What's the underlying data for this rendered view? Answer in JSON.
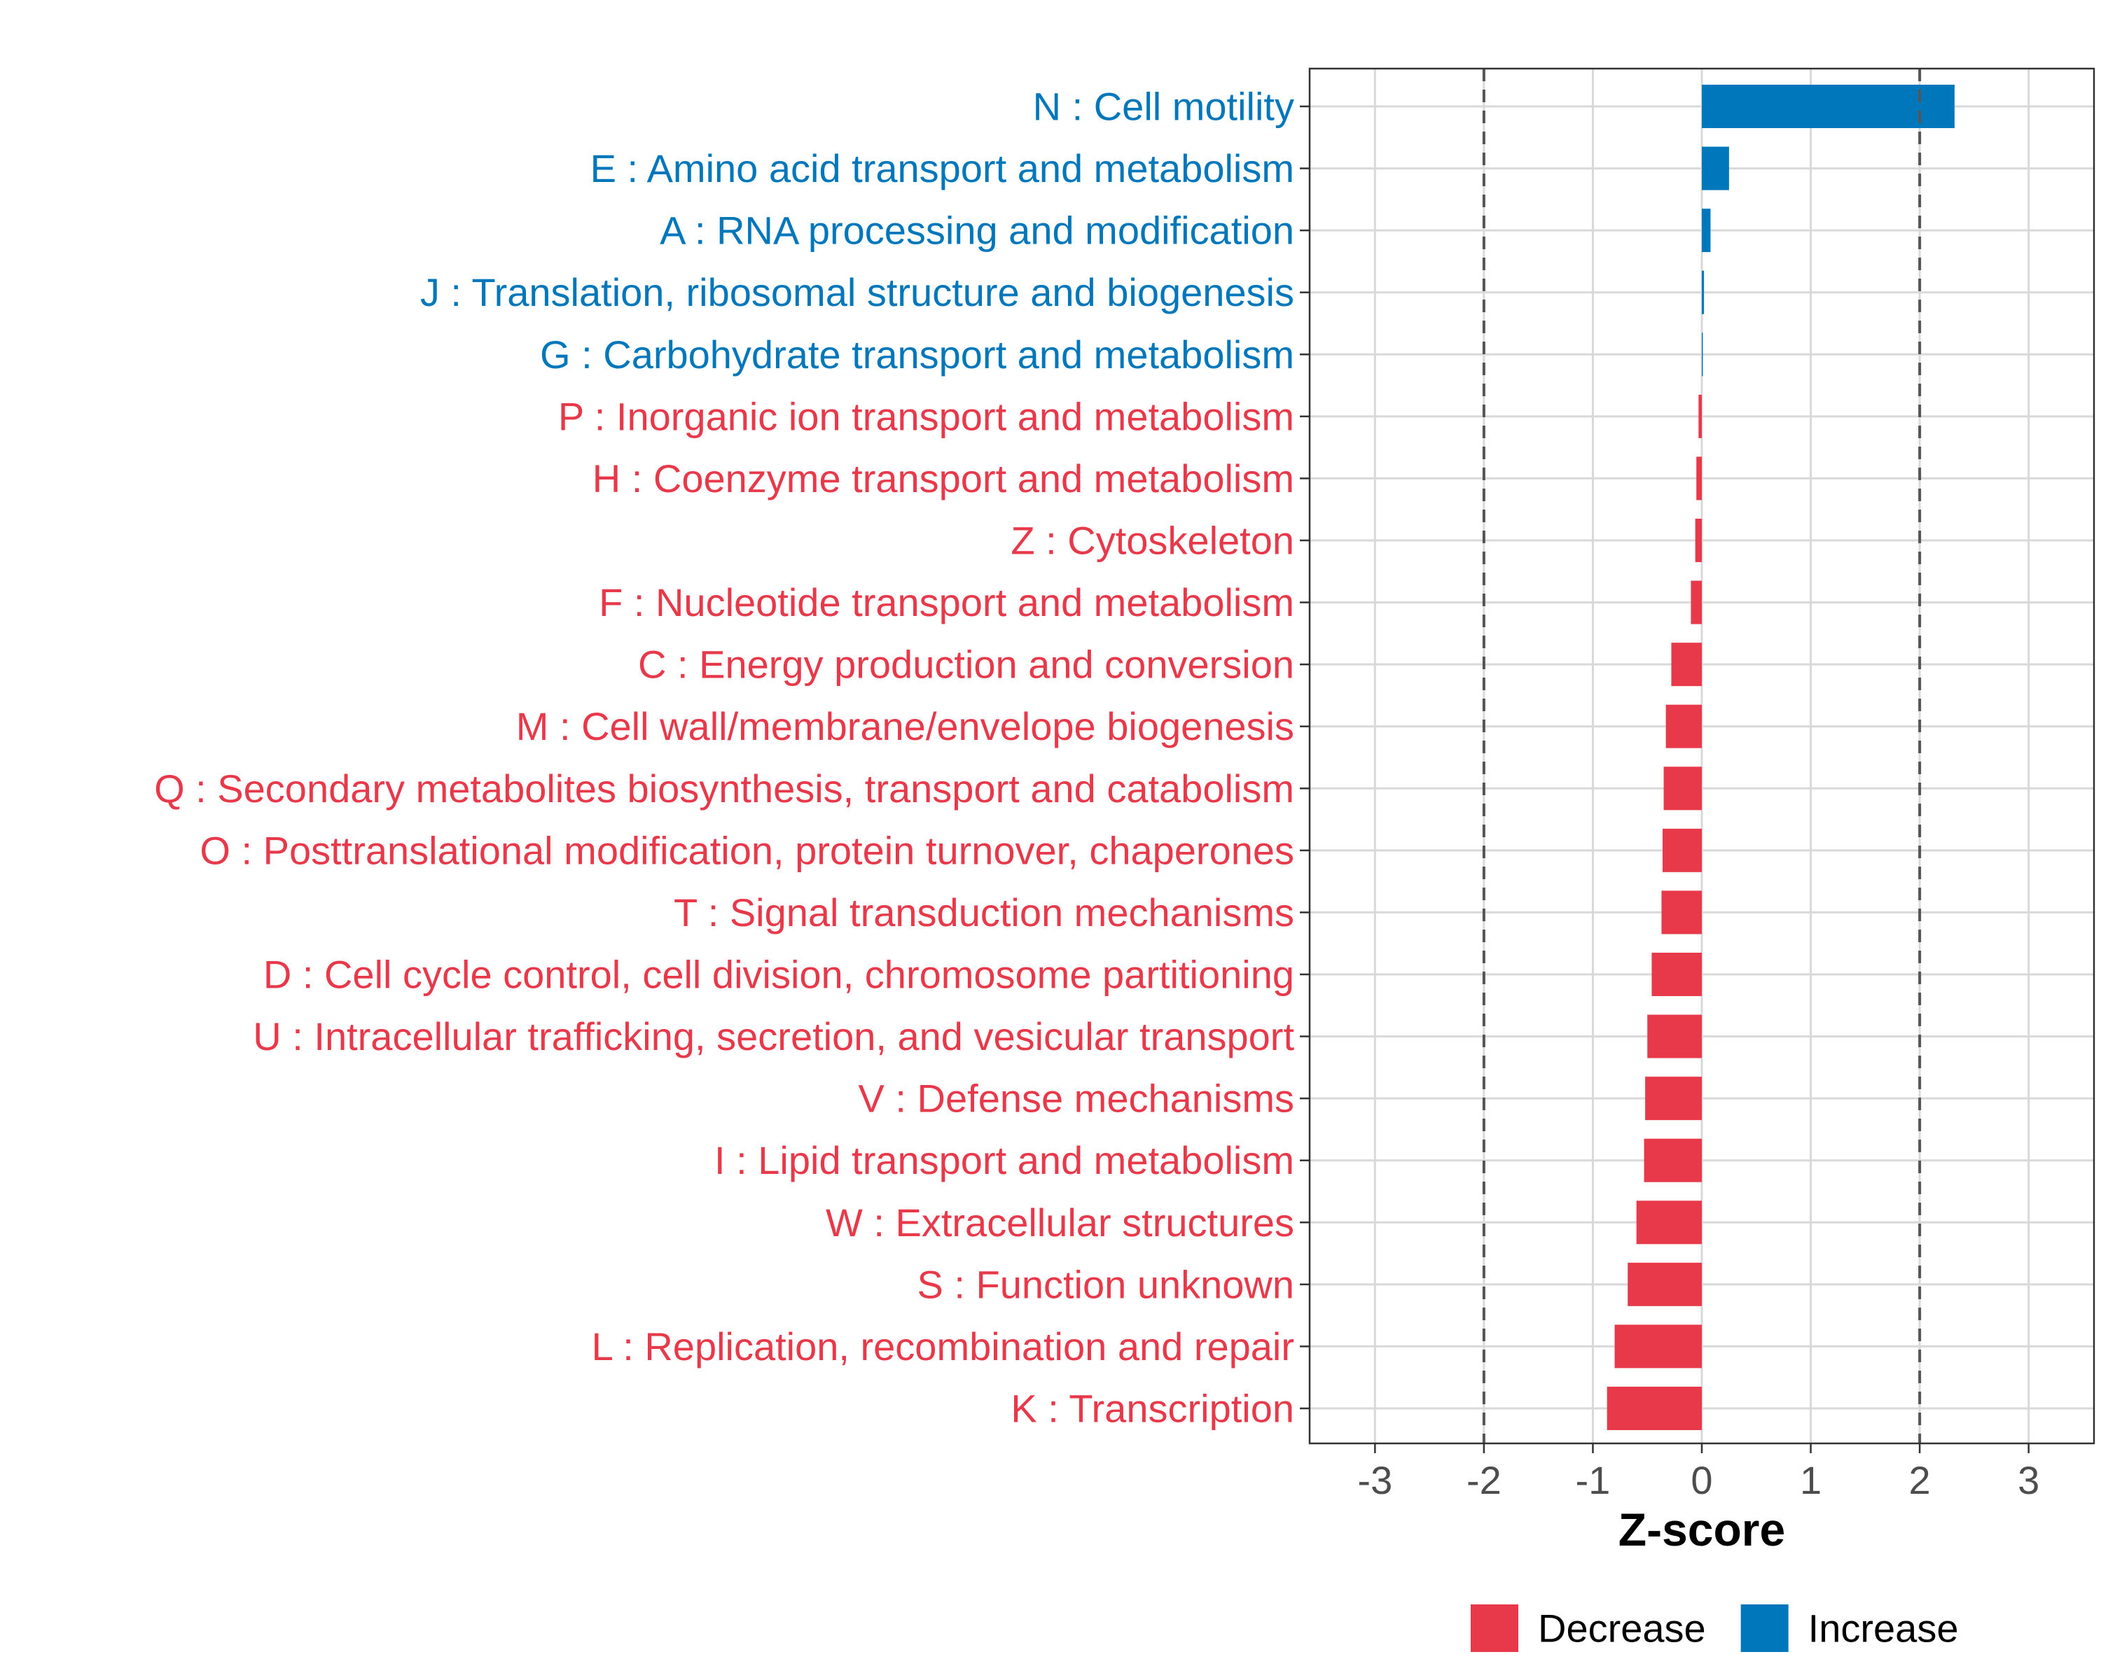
{
  "chart_data": {
    "type": "bar",
    "orientation": "horizontal",
    "xlabel": "Z-score",
    "ylabel": "",
    "xlim": [
      -3.6,
      3.6
    ],
    "x_ticks": [
      -3,
      -2,
      -1,
      0,
      1,
      2,
      3
    ],
    "threshold_lines": [
      -2,
      2
    ],
    "grid": true,
    "legend_position": "bottom",
    "colors": {
      "Increase": "#0077BB",
      "Decrease": "#E8394A",
      "gridline": "#D9D9D9",
      "dashline": "#555555",
      "tick_text": "#4D4D4D"
    },
    "legend": [
      {
        "label": "Decrease",
        "color": "#E8394A"
      },
      {
        "label": "Increase",
        "color": "#0077BB"
      }
    ],
    "categories": [
      "N : Cell motility",
      "E : Amino acid transport and metabolism",
      "A : RNA processing and modification",
      "J : Translation, ribosomal structure and biogenesis",
      "G : Carbohydrate transport and metabolism",
      "P : Inorganic ion transport and metabolism",
      "H : Coenzyme transport and metabolism",
      "Z : Cytoskeleton",
      "F : Nucleotide transport and metabolism",
      "C : Energy production and conversion",
      "M : Cell wall/membrane/envelope biogenesis",
      "Q : Secondary metabolites biosynthesis, transport and catabolism",
      "O : Posttranslational modification, protein turnover, chaperones",
      "T : Signal transduction mechanisms",
      "D : Cell cycle control, cell division, chromosome partitioning",
      "U : Intracellular trafficking, secretion, and vesicular transport",
      "V : Defense mechanisms",
      "I : Lipid transport and metabolism",
      "W : Extracellular structures",
      "S : Function unknown",
      "L : Replication, recombination and repair",
      "K : Transcription"
    ],
    "values": [
      2.32,
      0.25,
      0.08,
      0.02,
      0.005,
      -0.03,
      -0.05,
      -0.06,
      -0.1,
      -0.28,
      -0.33,
      -0.35,
      -0.36,
      -0.37,
      -0.46,
      -0.5,
      -0.52,
      -0.53,
      -0.6,
      -0.68,
      -0.8,
      -0.87
    ],
    "groups": [
      "Increase",
      "Increase",
      "Increase",
      "Increase",
      "Increase",
      "Decrease",
      "Decrease",
      "Decrease",
      "Decrease",
      "Decrease",
      "Decrease",
      "Decrease",
      "Decrease",
      "Decrease",
      "Decrease",
      "Decrease",
      "Decrease",
      "Decrease",
      "Decrease",
      "Decrease",
      "Decrease",
      "Decrease"
    ]
  }
}
